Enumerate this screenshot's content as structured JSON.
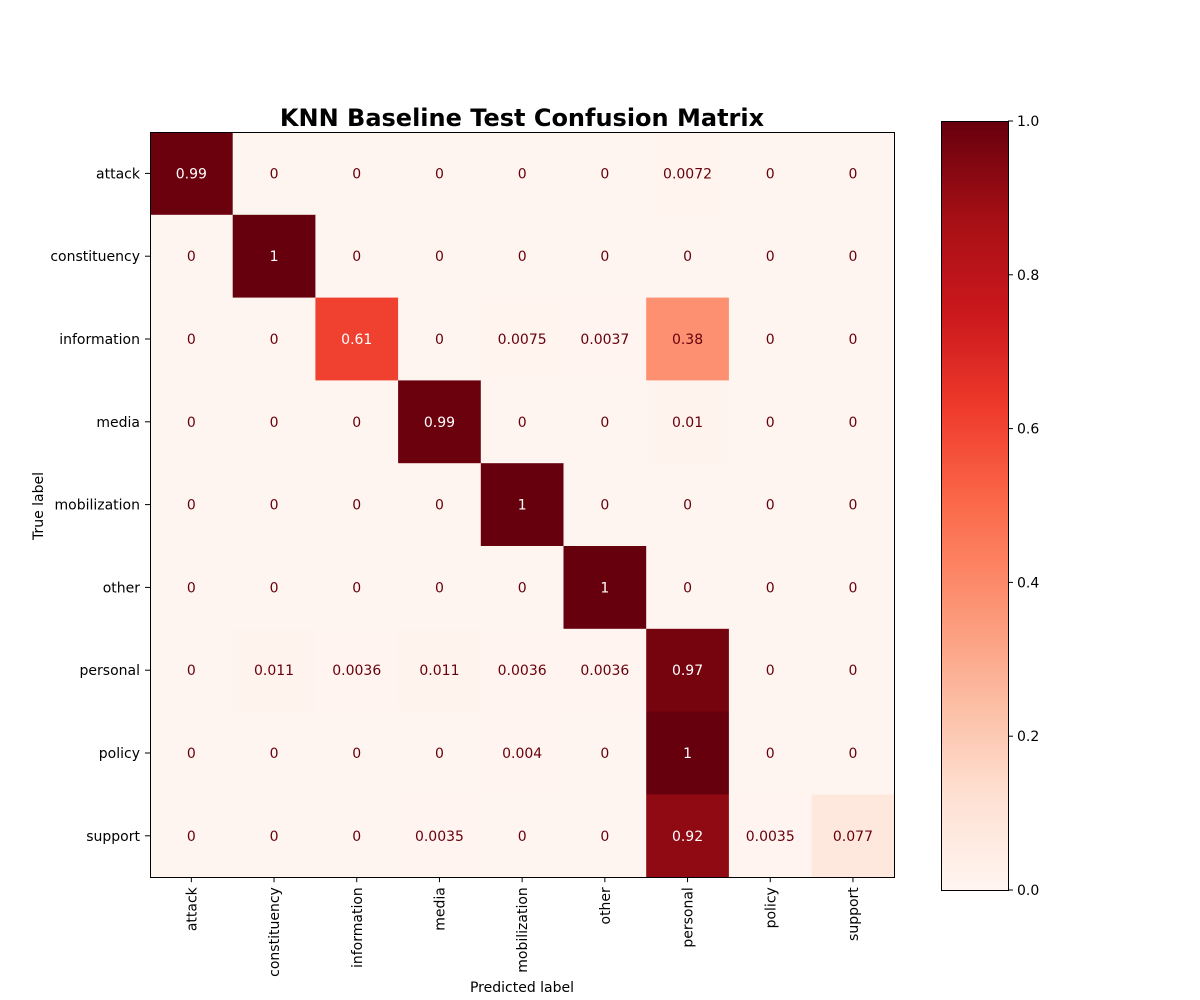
{
  "chart_data": {
    "type": "heatmap",
    "title": "KNN Baseline Test Confusion Matrix",
    "xlabel": "Predicted label",
    "ylabel": "True label",
    "labels": [
      "attack",
      "constituency",
      "information",
      "media",
      "mobilization",
      "other",
      "personal",
      "policy",
      "support"
    ],
    "matrix": [
      [
        "0.99",
        "0",
        "0",
        "0",
        "0",
        "0",
        "0.0072",
        "0",
        "0"
      ],
      [
        "0",
        "1",
        "0",
        "0",
        "0",
        "0",
        "0",
        "0",
        "0"
      ],
      [
        "0",
        "0",
        "0.61",
        "0",
        "0.0075",
        "0.0037",
        "0.38",
        "0",
        "0"
      ],
      [
        "0",
        "0",
        "0",
        "0.99",
        "0",
        "0",
        "0.01",
        "0",
        "0"
      ],
      [
        "0",
        "0",
        "0",
        "0",
        "1",
        "0",
        "0",
        "0",
        "0"
      ],
      [
        "0",
        "0",
        "0",
        "0",
        "0",
        "1",
        "0",
        "0",
        "0"
      ],
      [
        "0",
        "0.011",
        "0.0036",
        "0.011",
        "0.0036",
        "0.0036",
        "0.97",
        "0",
        "0"
      ],
      [
        "0",
        "0",
        "0",
        "0",
        "0.004",
        "0",
        "1",
        "0",
        "0"
      ],
      [
        "0",
        "0",
        "0",
        "0.0035",
        "0",
        "0",
        "0.92",
        "0.0035",
        "0.077"
      ]
    ],
    "colormap": "Reds",
    "colorbar": {
      "range": [
        0.0,
        1.0
      ],
      "ticks": [
        "0.0",
        "0.2",
        "0.4",
        "0.6",
        "0.8",
        "1.0"
      ]
    },
    "grid": false
  }
}
